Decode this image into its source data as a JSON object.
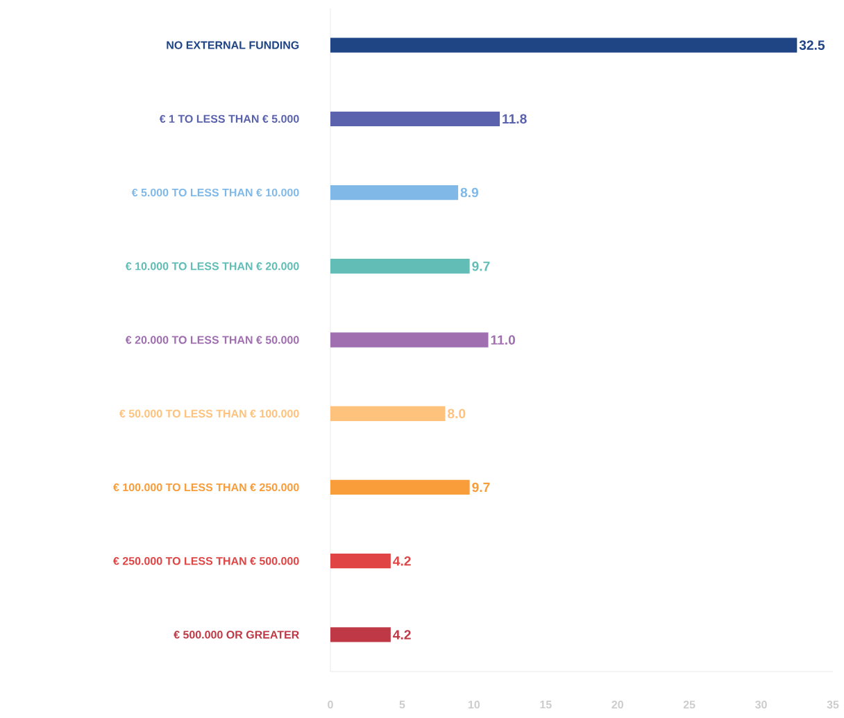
{
  "chart_data": {
    "type": "bar",
    "orientation": "horizontal",
    "categories": [
      "NO EXTERNAL FUNDING",
      "€ 1 TO LESS THAN € 5.000",
      "€ 5.000 TO LESS THAN € 10.000",
      "€ 10.000 TO LESS THAN € 20.000",
      "€ 20.000 TO LESS THAN € 50.000",
      "€ 50.000 TO LESS THAN € 100.000",
      "€ 100.000 TO LESS THAN € 250.000",
      "€ 250.000 TO LESS THAN € 500.000",
      "€ 500.000 OR GREATER"
    ],
    "values": [
      32.5,
      11.8,
      8.9,
      9.7,
      11.0,
      8.0,
      9.7,
      4.2,
      4.2
    ],
    "colors": [
      "#1f4585",
      "#5a62ad",
      "#80b9e8",
      "#61bdb6",
      "#a06fb0",
      "#ffc27d",
      "#f99c3a",
      "#e04444",
      "#bf3846"
    ],
    "value_labels": [
      "32.5",
      "11.8",
      "8.9",
      "9.7",
      "11.0",
      "8.0",
      "9.7",
      "4.2",
      "4.2"
    ],
    "xlim": [
      0,
      35
    ],
    "xticks": [
      0,
      5,
      10,
      15,
      20,
      25,
      30,
      35
    ],
    "grid": false
  }
}
